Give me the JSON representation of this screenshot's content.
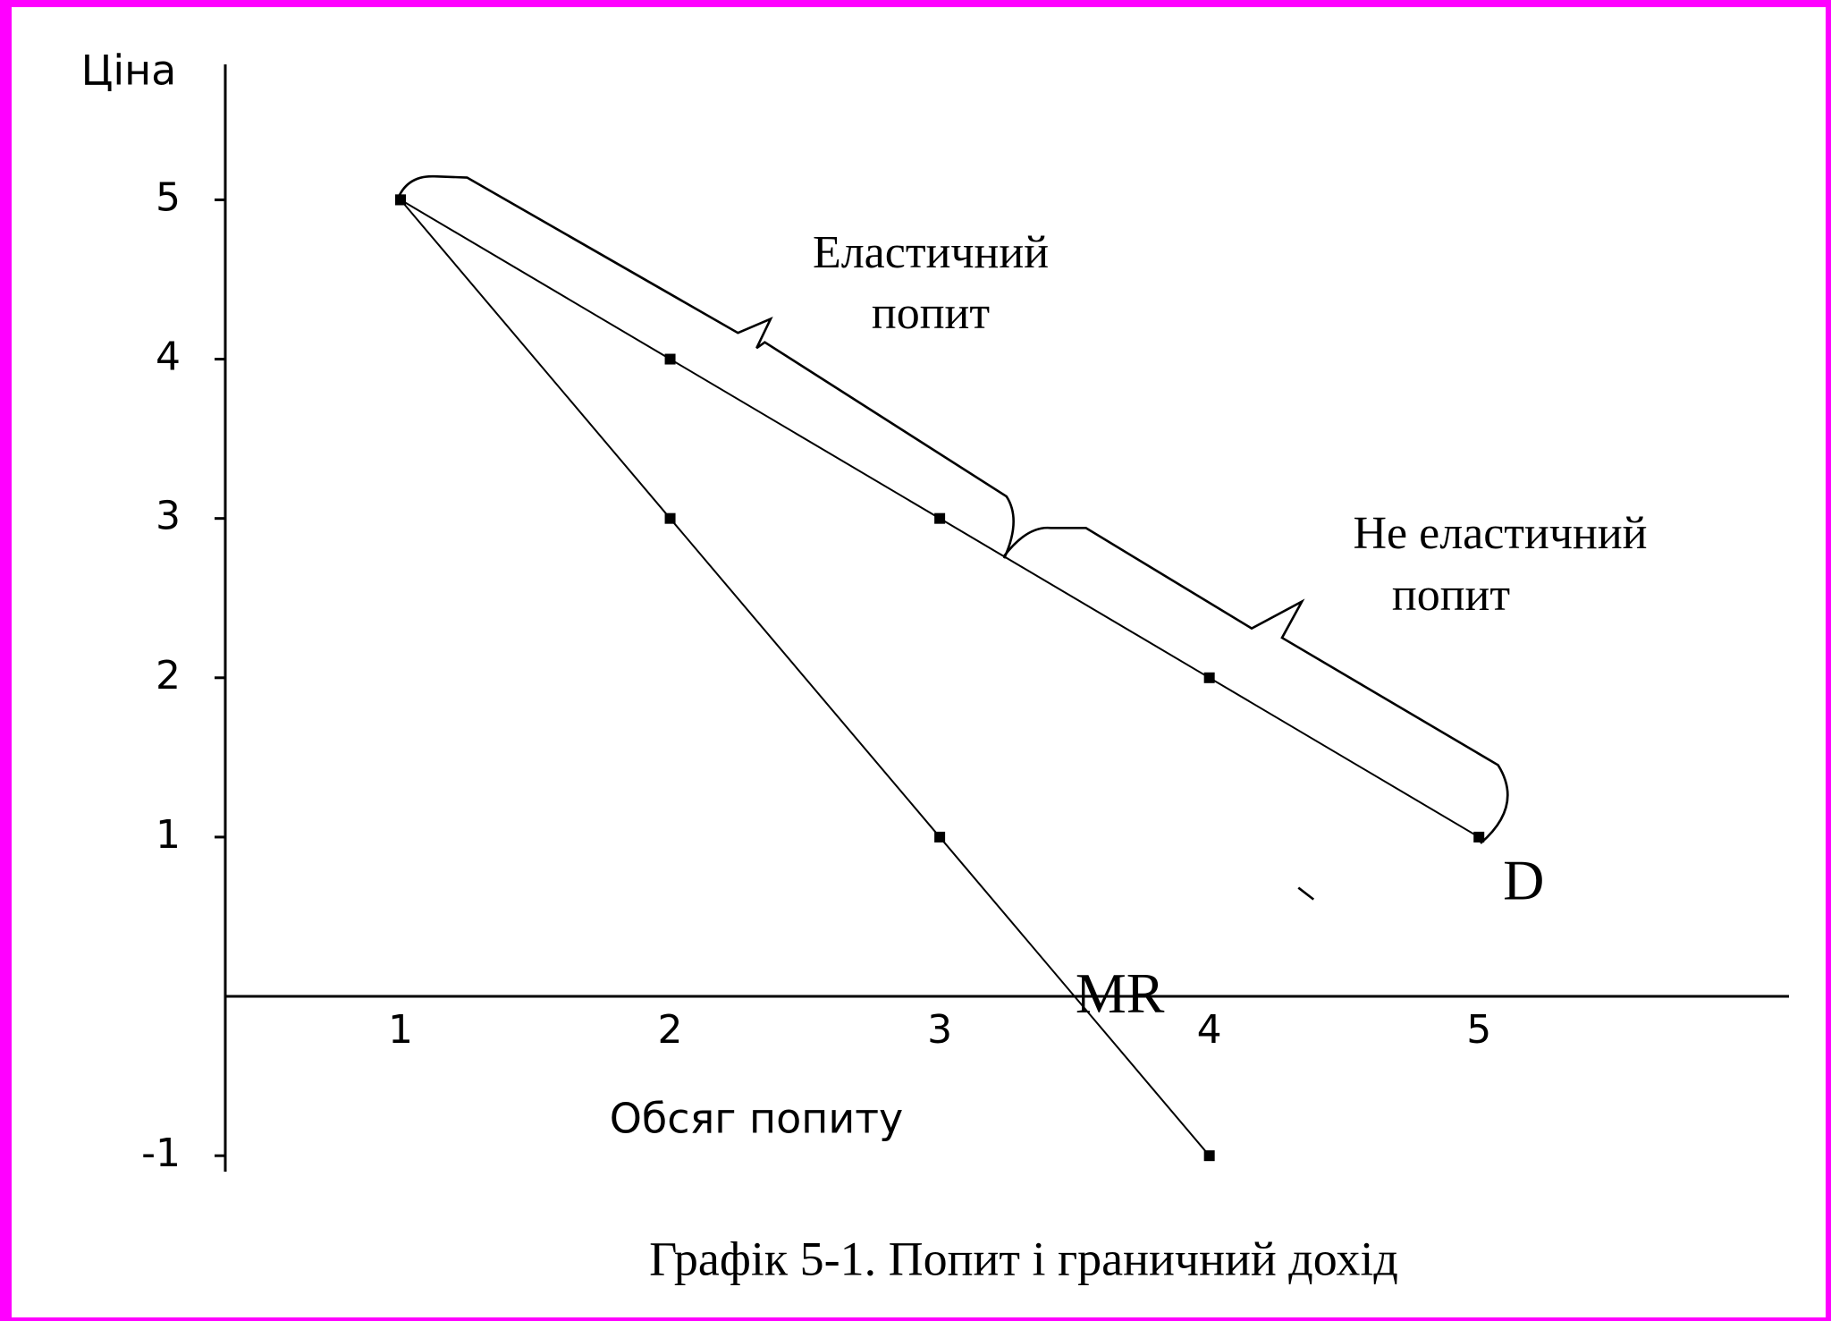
{
  "chart_data": {
    "type": "line",
    "title": "Графік 5-1. Попит і граничний дохід",
    "x_label": "Обсяг попиту",
    "y_label": "Ціна",
    "annotations": [
      [
        "Еластичний",
        "попит"
      ],
      [
        "Не еластичний",
        "попит"
      ]
    ],
    "series": [
      {
        "name": "D",
        "color": "#000000",
        "x": [
          1,
          2,
          3,
          4,
          5
        ],
        "values": [
          5,
          4,
          3,
          2,
          1
        ]
      },
      {
        "name": "MR",
        "color": "#000000",
        "x": [
          1,
          2,
          3,
          4
        ],
        "values": [
          5,
          3,
          1,
          -1
        ]
      }
    ],
    "xlim": [
      0.35,
      6.15
    ],
    "ylim": [
      -1.1,
      5.85
    ],
    "xticks": [
      1,
      2,
      3,
      4,
      5
    ],
    "yticks": [
      -1,
      1,
      2,
      3,
      4,
      5
    ],
    "grid": false
  }
}
